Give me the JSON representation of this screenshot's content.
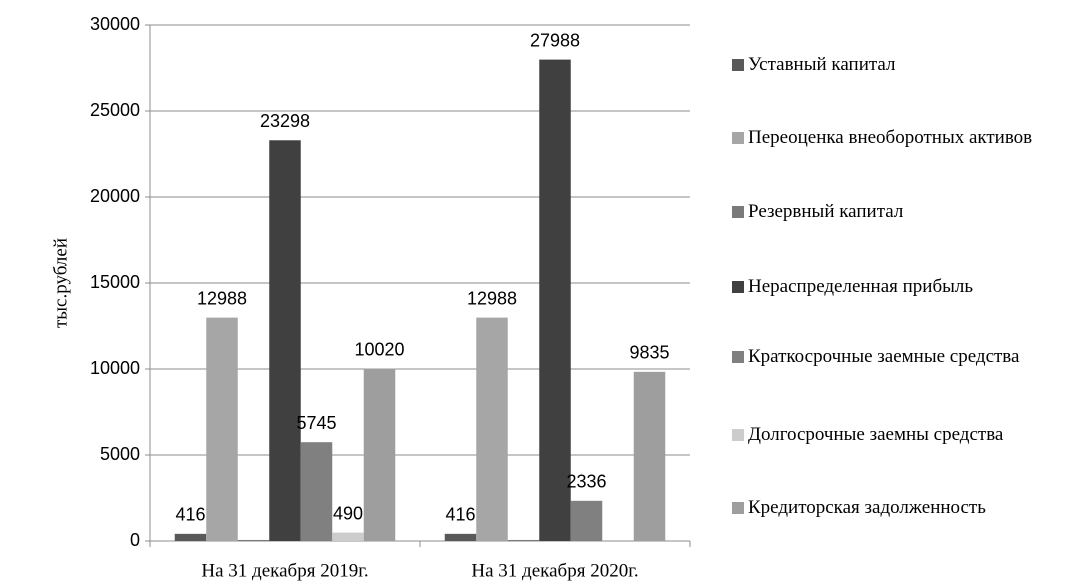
{
  "chart_data": {
    "type": "bar",
    "y_label": "тыс.рублей",
    "categories": [
      "На 31 декабря 2019г.",
      "На 31 декабря 2020г."
    ],
    "series": [
      {
        "name": "Уставный капитал",
        "color": "#595959",
        "values": [
          416,
          416
        ],
        "show_labels": true
      },
      {
        "name": "Переоценка внеоборотных активов",
        "color": "#a6a6a6",
        "values": [
          12988,
          12988
        ],
        "show_labels": true
      },
      {
        "name": "Резервный капитал",
        "color": "#7a7a7a",
        "values": [
          60,
          60
        ],
        "show_labels": false
      },
      {
        "name": "Нераспределенная прибыль",
        "color": "#404040",
        "values": [
          23298,
          27988
        ],
        "show_labels": true
      },
      {
        "name": "Краткосрочные заемные средства",
        "color": "#808080",
        "values": [
          5745,
          2336
        ],
        "show_labels": true
      },
      {
        "name": "Долгосрочные заемны средства",
        "color": "#cccccc",
        "values": [
          490,
          null
        ],
        "show_labels": true
      },
      {
        "name": "Кредиторская задолженность",
        "color": "#9e9e9e",
        "values": [
          10020,
          9835
        ],
        "show_labels": true
      }
    ],
    "ylim": [
      0,
      30000
    ],
    "yticks": [
      0,
      5000,
      10000,
      15000,
      20000,
      25000,
      30000
    ],
    "grid": true,
    "legend": "right"
  }
}
